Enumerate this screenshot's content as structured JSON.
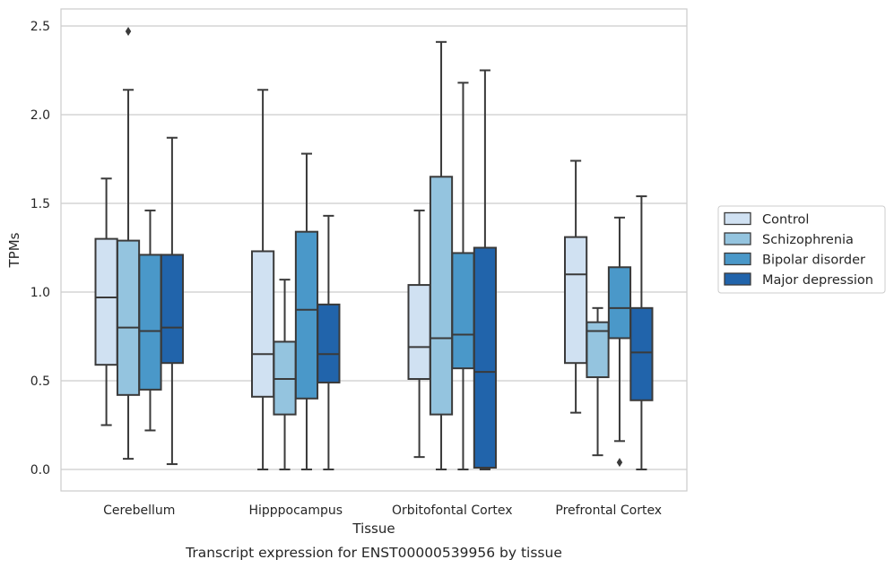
{
  "chart_data": {
    "type": "box",
    "caption": "Transcript expression for ENST00000539956 by tissue",
    "xlabel": "Tissue",
    "ylabel": "TPMs",
    "ylim": [
      -0.12,
      2.6
    ],
    "yticks": [
      0.0,
      0.5,
      1.0,
      1.5,
      2.0,
      2.5
    ],
    "ytick_labels": [
      "0.0",
      "0.5",
      "1.0",
      "1.5",
      "2.0",
      "2.5"
    ],
    "grid": true,
    "legend_position": "right",
    "categories": [
      "Cerebellum",
      "Hipppocampus",
      "Orbitofontal Cortex",
      "Prefrontal Cortex"
    ],
    "series": [
      {
        "name": "Control",
        "color": "#d0e1f2",
        "boxes": [
          {
            "whisker_low": 0.25,
            "q1": 0.59,
            "median": 0.97,
            "q3": 1.3,
            "whisker_high": 1.64,
            "outliers": []
          },
          {
            "whisker_low": 0.0,
            "q1": 0.41,
            "median": 0.65,
            "q3": 1.23,
            "whisker_high": 2.14,
            "outliers": []
          },
          {
            "whisker_low": 0.07,
            "q1": 0.51,
            "median": 0.69,
            "q3": 1.04,
            "whisker_high": 1.46,
            "outliers": []
          },
          {
            "whisker_low": 0.32,
            "q1": 0.6,
            "median": 1.1,
            "q3": 1.31,
            "whisker_high": 1.74,
            "outliers": []
          }
        ]
      },
      {
        "name": "Schizophrenia",
        "color": "#94c4df",
        "boxes": [
          {
            "whisker_low": 0.06,
            "q1": 0.42,
            "median": 0.8,
            "q3": 1.29,
            "whisker_high": 2.14,
            "outliers": [
              2.47
            ]
          },
          {
            "whisker_low": 0.0,
            "q1": 0.31,
            "median": 0.51,
            "q3": 0.72,
            "whisker_high": 1.07,
            "outliers": []
          },
          {
            "whisker_low": 0.0,
            "q1": 0.31,
            "median": 0.74,
            "q3": 1.65,
            "whisker_high": 2.41,
            "outliers": []
          },
          {
            "whisker_low": 0.08,
            "q1": 0.52,
            "median": 0.78,
            "q3": 0.83,
            "whisker_high": 0.91,
            "outliers": []
          }
        ]
      },
      {
        "name": "Bipolar disorder",
        "color": "#4a98c9",
        "boxes": [
          {
            "whisker_low": 0.22,
            "q1": 0.45,
            "median": 0.78,
            "q3": 1.21,
            "whisker_high": 1.46,
            "outliers": []
          },
          {
            "whisker_low": 0.0,
            "q1": 0.4,
            "median": 0.9,
            "q3": 1.34,
            "whisker_high": 1.78,
            "outliers": []
          },
          {
            "whisker_low": 0.0,
            "q1": 0.57,
            "median": 0.76,
            "q3": 1.22,
            "whisker_high": 2.18,
            "outliers": []
          },
          {
            "whisker_low": 0.16,
            "q1": 0.74,
            "median": 0.91,
            "q3": 1.14,
            "whisker_high": 1.42,
            "outliers": [
              0.04
            ]
          }
        ]
      },
      {
        "name": "Major depression",
        "color": "#2164ab",
        "boxes": [
          {
            "whisker_low": 0.03,
            "q1": 0.6,
            "median": 0.8,
            "q3": 1.21,
            "whisker_high": 1.87,
            "outliers": []
          },
          {
            "whisker_low": 0.0,
            "q1": 0.49,
            "median": 0.65,
            "q3": 0.93,
            "whisker_high": 1.43,
            "outliers": []
          },
          {
            "whisker_low": 0.0,
            "q1": 0.01,
            "median": 0.55,
            "q3": 1.25,
            "whisker_high": 2.25,
            "outliers": []
          },
          {
            "whisker_low": 0.0,
            "q1": 0.39,
            "median": 0.66,
            "q3": 0.91,
            "whisker_high": 1.54,
            "outliers": []
          }
        ]
      }
    ],
    "colors": {
      "grid": "#cccccc",
      "frame": "#cccccc",
      "line": "#3a3a3a",
      "text": "#262626"
    }
  }
}
